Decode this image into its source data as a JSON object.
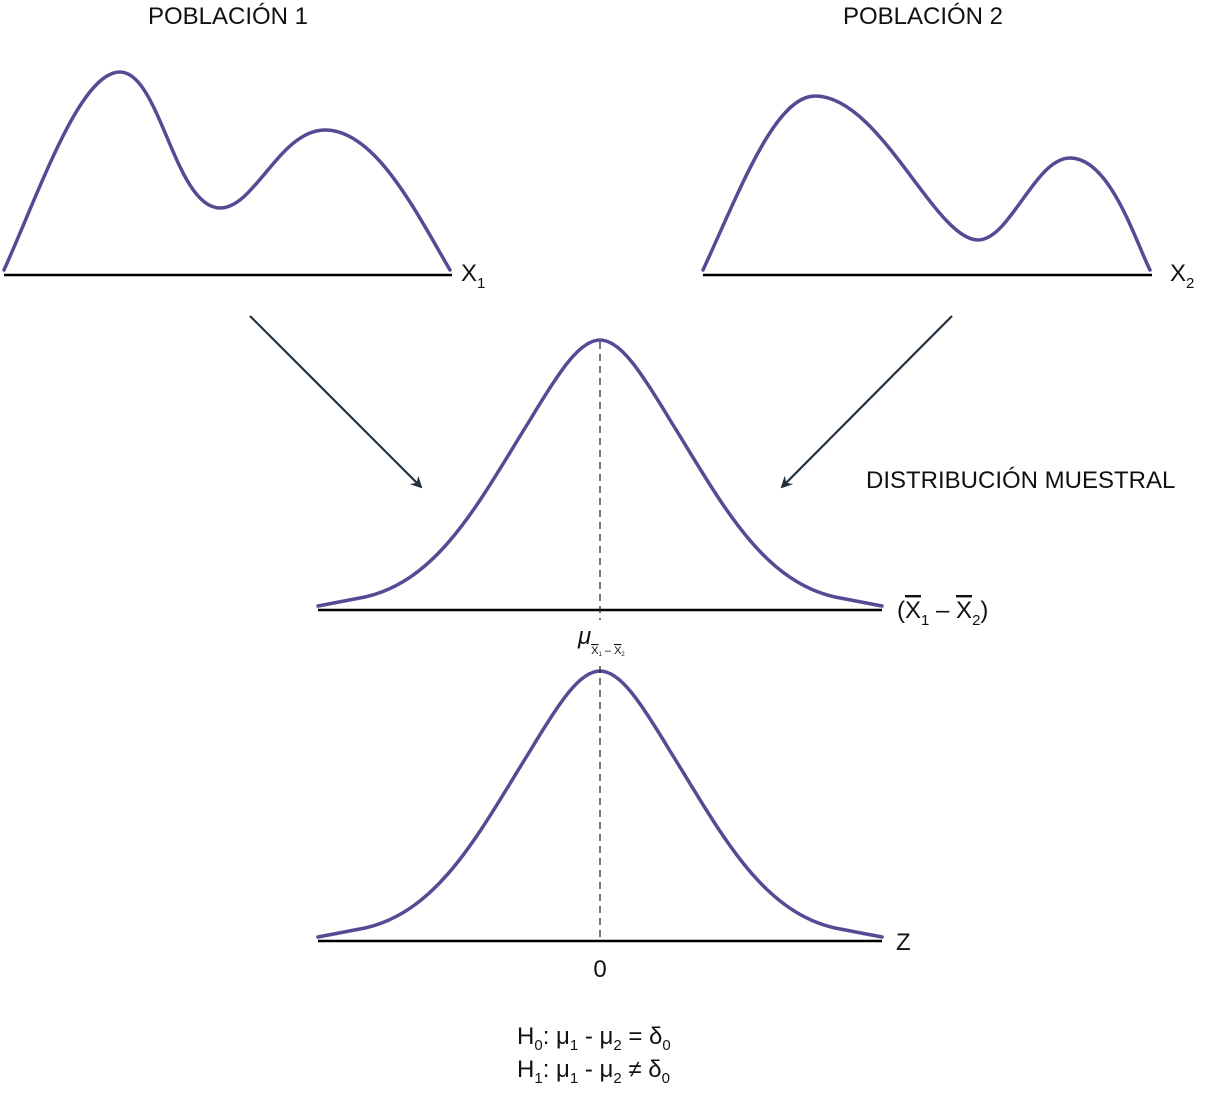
{
  "population1": {
    "title": "POBLACIÓN 1",
    "axis_label": {
      "base": "X",
      "sub": "1"
    }
  },
  "population2": {
    "title": "POBLACIÓN 2",
    "axis_label": {
      "base": "X",
      "sub": "2"
    }
  },
  "sampling": {
    "title": "DISTRIBUCIÓN MUESTRAL",
    "axis_label": {
      "open": "(",
      "x1": "X",
      "sub1": "1",
      "minus": " – ",
      "x2": "X",
      "sub2": "2",
      "close": ")"
    },
    "center_label": {
      "mu": "μ",
      "x1": "X",
      "sub1": "1",
      "minus": " – ",
      "x2": "X",
      "sub2": "2"
    }
  },
  "standard": {
    "axis_label": "Z",
    "center_label": "0"
  },
  "hypotheses": {
    "h0": {
      "h": "H",
      "hsub": "0",
      "a": ": μ",
      "s1": "1",
      "b": " - μ",
      "s2": "2",
      "c": " = δ",
      "s3": "0"
    },
    "h1": {
      "h": "H",
      "hsub": "1",
      "a": ": μ",
      "s1": "1",
      "b": " - μ",
      "s2": "2",
      "c": " ≠ δ",
      "s3": "0"
    }
  },
  "colors": {
    "curve": "#574a94",
    "arrow": "#1f3040",
    "axis": "#000000"
  }
}
